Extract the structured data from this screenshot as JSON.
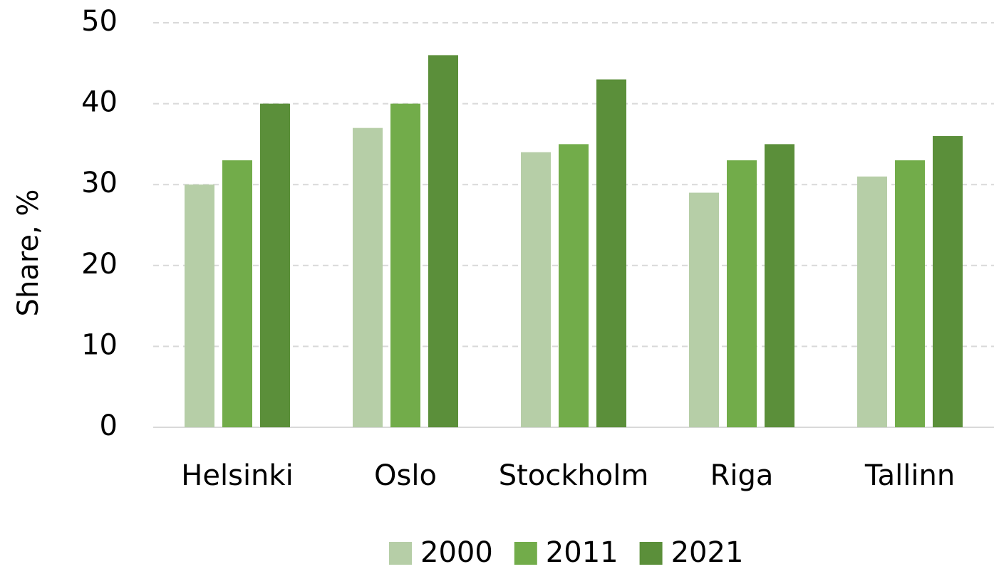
{
  "chart_data": {
    "type": "bar",
    "y_label": "Share, %",
    "categories": [
      "Helsinki",
      "Oslo",
      "Stockholm",
      "Riga",
      "Tallinn"
    ],
    "series": [
      {
        "name": "2000",
        "color": "#b6cea7",
        "values": [
          30,
          37,
          34,
          29,
          31
        ]
      },
      {
        "name": "2011",
        "color": "#72ac4a",
        "values": [
          33,
          40,
          35,
          33,
          33
        ]
      },
      {
        "name": "2021",
        "color": "#5b8f3a",
        "values": [
          40,
          46,
          43,
          35,
          36
        ]
      }
    ],
    "ylim": [
      0,
      50
    ],
    "yticks": [
      0,
      10,
      20,
      30,
      40,
      50
    ],
    "grid": true,
    "legend": "bottom"
  }
}
